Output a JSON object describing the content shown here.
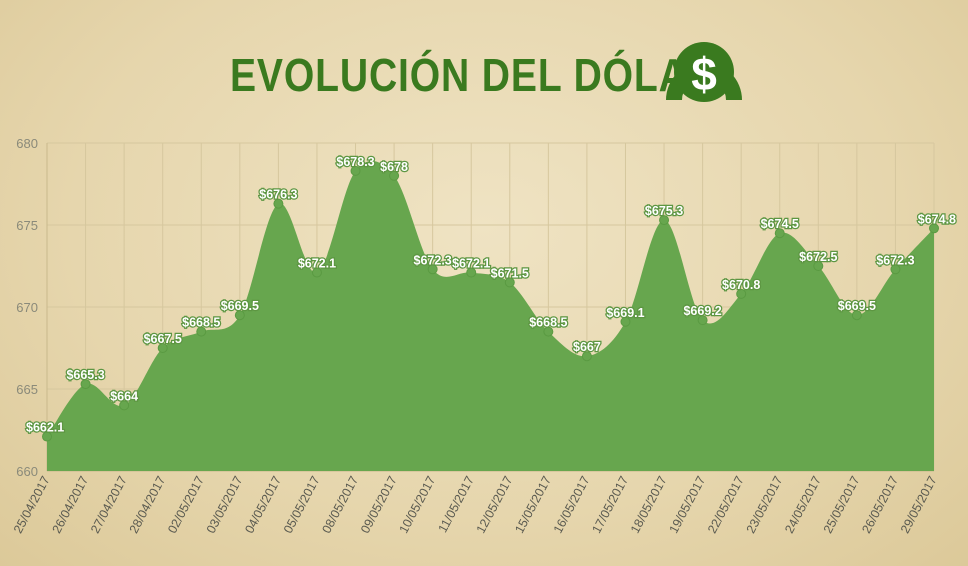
{
  "title": "EVOLUCIÓN DEL DÓLAR",
  "icon": "dollar-coin-icon",
  "colors": {
    "area": "#67a64e",
    "title": "#3a7a1f",
    "grid": "#d6c79e",
    "label_stroke": "#5d9642"
  },
  "chart_data": {
    "type": "area",
    "title": "EVOLUCIÓN DEL DÓLAR",
    "xlabel": "",
    "ylabel": "",
    "ylim": [
      660,
      680
    ],
    "yticks": [
      660,
      665,
      670,
      675,
      680
    ],
    "x_tick_labels": [
      "25/04/2017",
      "26/04/2017",
      "27/04/2017",
      "28/04/2017",
      "02/05/2017",
      "03/05/2017",
      "04/05/2017",
      "05/05/2017",
      "08/05/2017",
      "09/05/2017",
      "10/05/2017",
      "11/05/2017",
      "12/05/2017",
      "15/05/2017",
      "16/05/2017",
      "17/05/2017",
      "18/05/2017",
      "19/05/2017",
      "22/05/2017",
      "23/05/2017",
      "24/05/2017",
      "25/05/2017",
      "26/05/2017",
      "29/05/2017"
    ],
    "points": [
      {
        "label": "$662.1",
        "value": 662.1
      },
      {
        "label": "$665.3",
        "value": 665.3
      },
      {
        "label": "$664",
        "value": 664
      },
      {
        "label": "$667.5",
        "value": 667.5
      },
      {
        "label": "$668.5",
        "value": 668.5
      },
      {
        "label": "$669.5",
        "value": 669.5
      },
      {
        "label": "$676.3",
        "value": 676.3
      },
      {
        "label": "$672.1",
        "value": 672.1
      },
      {
        "label": "$678.3",
        "value": 678.3
      },
      {
        "label": "$678",
        "value": 678
      },
      {
        "label": "$672.3",
        "value": 672.3
      },
      {
        "label": "$672.1",
        "value": 672.1
      },
      {
        "label": "$671.5",
        "value": 671.5
      },
      {
        "label": "$668.5",
        "value": 668.5
      },
      {
        "label": "$667",
        "value": 667
      },
      {
        "label": "$669.1",
        "value": 669.1
      },
      {
        "label": "$675.3",
        "value": 675.3
      },
      {
        "label": "$669.2",
        "value": 669.2
      },
      {
        "label": "$670.8",
        "value": 670.8
      },
      {
        "label": "$674.5",
        "value": 674.5
      },
      {
        "label": "$672.5",
        "value": 672.5
      },
      {
        "label": "$669.5",
        "value": 669.5
      },
      {
        "label": "$672.3",
        "value": 672.3
      },
      {
        "label": "$674.8",
        "value": 674.8
      }
    ],
    "grid": true,
    "legend": "none"
  }
}
